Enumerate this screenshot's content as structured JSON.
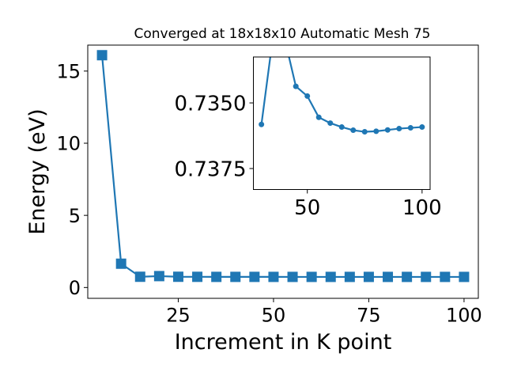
{
  "colors": {
    "series": "#1f77b4",
    "axis": "#000000",
    "background": "#ffffff"
  },
  "chart_data": [
    {
      "type": "line",
      "title": "Converged at 18x18x10 Automatic Mesh 75",
      "xlabel": "Increment in K point",
      "ylabel": "Energy (eV)",
      "xlim": [
        1.25,
        103.75
      ],
      "ylim": [
        -0.75,
        16.8
      ],
      "xticks": [
        25,
        50,
        75,
        100
      ],
      "yticks": [
        0,
        5,
        10,
        15
      ],
      "grid": false,
      "marker": "square",
      "x": [
        5,
        10,
        15,
        20,
        25,
        30,
        35,
        40,
        45,
        50,
        55,
        60,
        65,
        70,
        75,
        80,
        85,
        90,
        95,
        100
      ],
      "values": [
        16.1,
        1.65,
        0.745,
        0.79,
        0.745,
        0.741,
        0.737,
        0.737,
        0.737,
        0.736,
        0.735,
        0.735,
        0.735,
        0.735,
        0.735,
        0.735,
        0.735,
        0.735,
        0.735,
        0.735
      ]
    },
    {
      "type": "line",
      "placement": "inset-top-right",
      "xlim": [
        26.5,
        103.5
      ],
      "ylim": [
        0.7383,
        0.73325
      ],
      "yaxis_inverted": true,
      "xticks": [
        50,
        100
      ],
      "yticks": [
        0.735,
        0.7375
      ],
      "ytick_labels": [
        "0.7350",
        "0.7375"
      ],
      "grid": false,
      "marker": "circle",
      "x": [
        30,
        35,
        40,
        45,
        50,
        55,
        60,
        65,
        70,
        75,
        80,
        85,
        90,
        95,
        100
      ],
      "values": [
        0.73582,
        0.7325,
        0.7325,
        0.73437,
        0.73474,
        0.73555,
        0.73577,
        0.73592,
        0.73604,
        0.7361,
        0.73608,
        0.73603,
        0.73598,
        0.73595,
        0.73592
      ]
    }
  ]
}
